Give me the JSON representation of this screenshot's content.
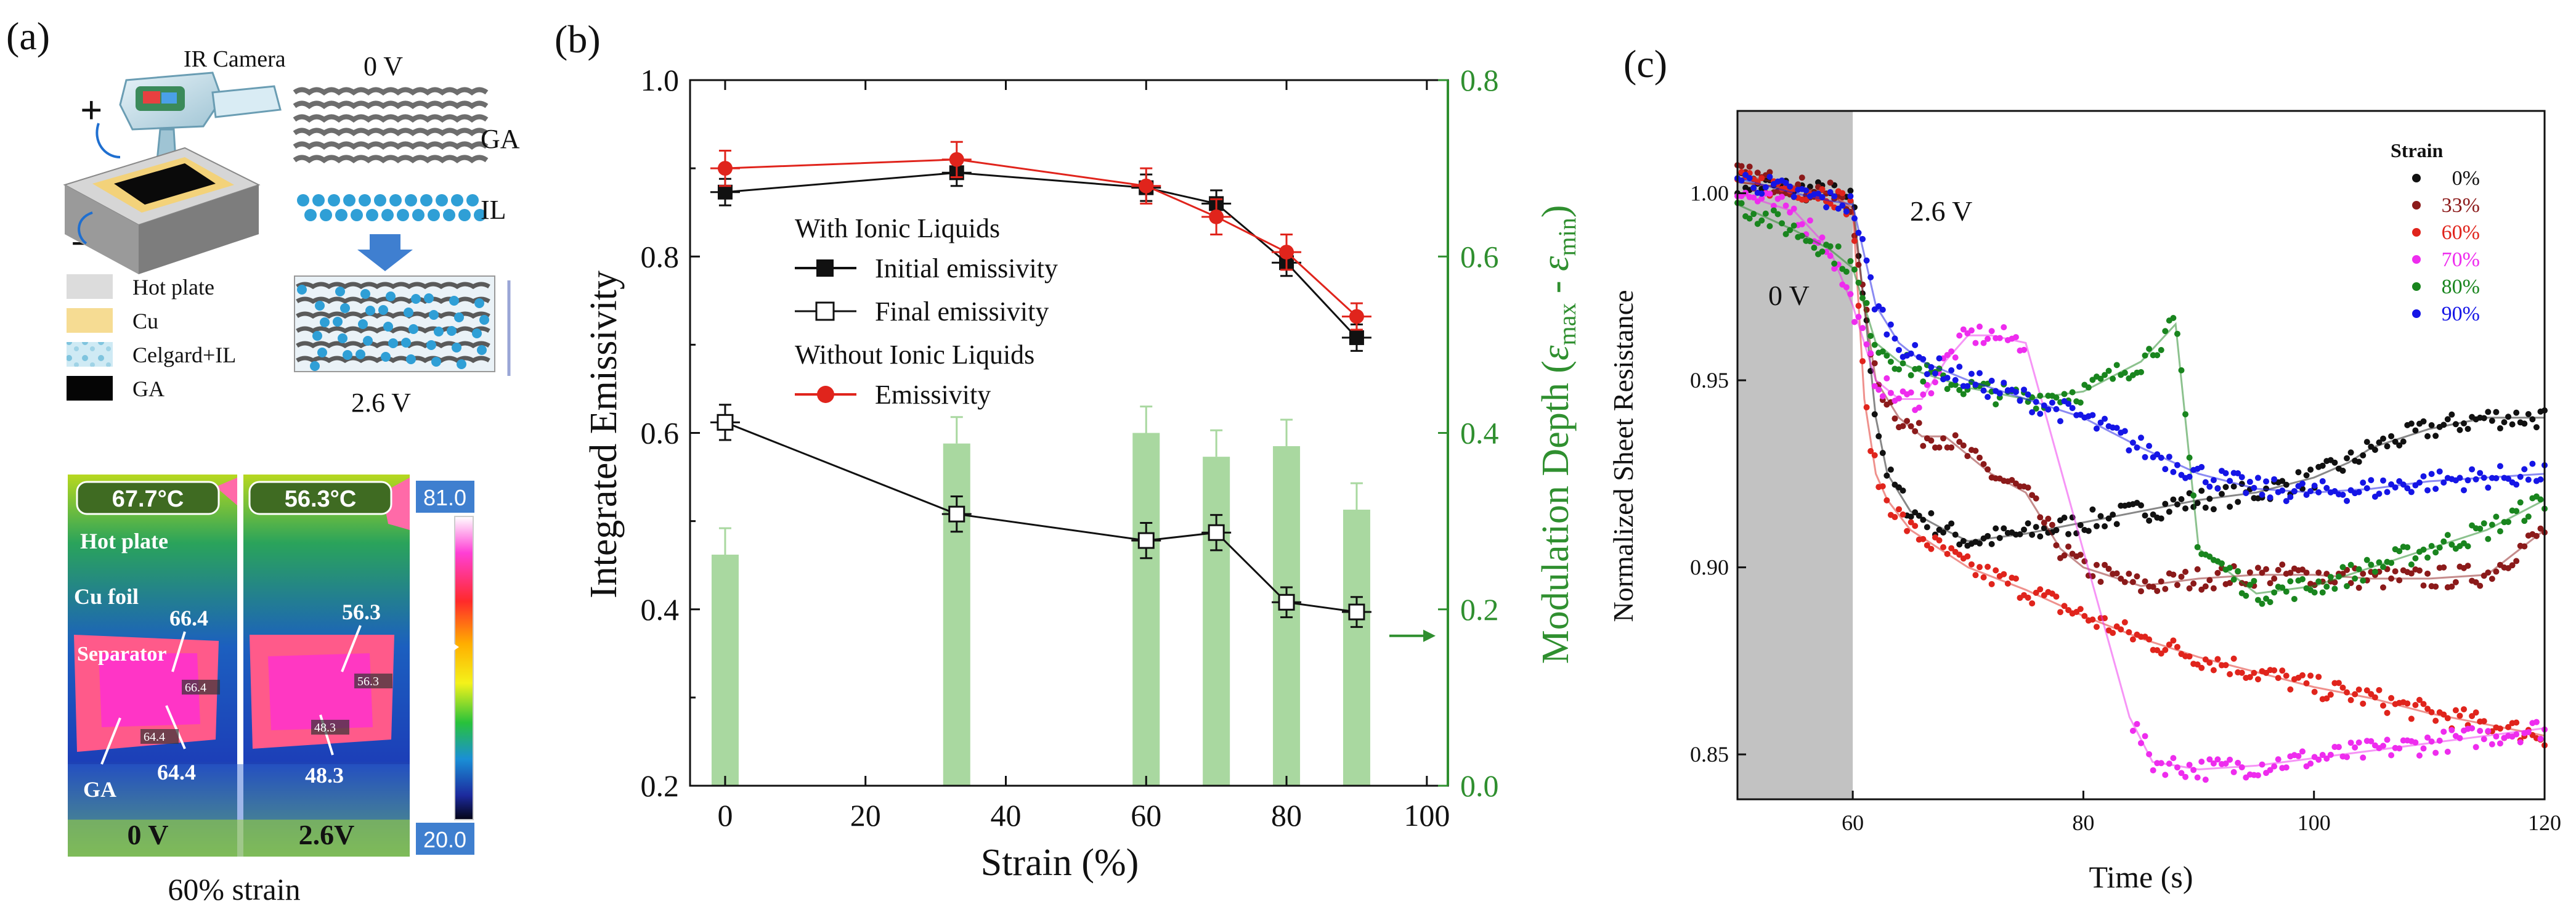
{
  "colors": {
    "black": "#111111",
    "red": "#e0241c",
    "green": "#2f8f2f",
    "bar_fill": "#a9d8a0",
    "gray_region": "#c2c2c2",
    "blue": "#1515e6",
    "darkred": "#8b1a1a",
    "magenta": "#ee2cee",
    "green_c": "#19851e",
    "hot": "#f2f2f2"
  },
  "panel_a": {
    "label": "(a)",
    "ir_camera": "IR Camera",
    "plus": "+",
    "minus": "−",
    "zero_v": "0 V",
    "ga": "GA",
    "il": "IL",
    "two_six_v": "2.6 V",
    "legend": [
      "Hot plate",
      "Cu",
      "Celgard+IL",
      "GA"
    ],
    "thermal": {
      "temp_left": "67.7°C",
      "temp_right": "56.3°C",
      "hot_plate": "Hot plate",
      "cu_foil": "Cu foil",
      "separator": "Separator",
      "ga": "GA",
      "left_values": [
        "66.4",
        "64.4"
      ],
      "right_values": [
        "56.3",
        "48.3"
      ],
      "small_tags_left": [
        "66.4",
        "64.4"
      ],
      "small_tags_right": [
        "56.3",
        "48.3"
      ],
      "colorbar_max": "81.0",
      "colorbar_min": "20.0",
      "voltage_left": "0 V",
      "voltage_right": "2.6V",
      "caption": "60% strain"
    }
  },
  "chart_data": [
    {
      "panel": "(b)",
      "type": "line",
      "xlabel": "Strain (%)",
      "ylabel": "Integrated Emissivity",
      "y2label": "Modulation Depth (εmax - εmin)",
      "y2label_parts": [
        "Modulation Depth (",
        "ε",
        "max",
        " - ",
        "ε",
        "min",
        ")"
      ],
      "xlim": [
        -5,
        103
      ],
      "ylim": [
        0.2,
        1.0
      ],
      "y2lim": [
        0.0,
        0.8
      ],
      "x_ticks": [
        0,
        20,
        40,
        60,
        80,
        100
      ],
      "y_ticks": [
        0.2,
        0.4,
        0.6,
        0.8,
        1.0
      ],
      "y2_ticks": [
        0.0,
        0.2,
        0.4,
        0.6,
        0.8
      ],
      "x_tick_labels": [
        "0",
        "20",
        "40",
        "60",
        "80",
        "100"
      ],
      "y_tick_labels": [
        "0.2",
        "0.4",
        "0.6",
        "0.8",
        "1.0"
      ],
      "y2_tick_labels": [
        "0.0",
        "0.2",
        "0.4",
        "0.6",
        "0.8"
      ],
      "arrow_at": 0.17,
      "legend": {
        "heading1": "With Ionic Liquids",
        "item1": "Initial emissivity",
        "item2": "Final emissivity",
        "heading2": "Without Ionic Liquids",
        "item3": "Emissivity"
      },
      "series": [
        {
          "name": "Initial emissivity",
          "marker": "filled-square",
          "color": "#111111",
          "x": [
            0,
            33,
            60,
            70,
            80,
            90
          ],
          "y": [
            0.873,
            0.895,
            0.878,
            0.86,
            0.793,
            0.708
          ],
          "yerr": [
            0.015,
            0.015,
            0.015,
            0.015,
            0.015,
            0.015
          ]
        },
        {
          "name": "Final emissivity",
          "marker": "open-square",
          "color": "#111111",
          "x": [
            0,
            33,
            60,
            70,
            80,
            90
          ],
          "y": [
            0.612,
            0.508,
            0.478,
            0.487,
            0.408,
            0.397
          ],
          "yerr": [
            0.02,
            0.02,
            0.02,
            0.02,
            0.017,
            0.017
          ]
        },
        {
          "name": "Emissivity",
          "marker": "filled-circle",
          "color": "#e0241c",
          "x": [
            0,
            33,
            60,
            70,
            80,
            90
          ],
          "y": [
            0.9,
            0.91,
            0.88,
            0.845,
            0.805,
            0.732
          ],
          "yerr": [
            0.02,
            0.02,
            0.02,
            0.02,
            0.02,
            0.015
          ]
        },
        {
          "name": "Modulation Depth",
          "type": "bar",
          "color": "#a9d8a0",
          "axis": "y2",
          "x": [
            0,
            33,
            60,
            70,
            80,
            90
          ],
          "y": [
            0.262,
            0.388,
            0.4,
            0.373,
            0.385,
            0.313
          ],
          "yerr": [
            0.03,
            0.03,
            0.03,
            0.03,
            0.03,
            0.03
          ]
        }
      ]
    },
    {
      "panel": "(c)",
      "type": "scatter",
      "xlabel": "Time (s)",
      "ylabel": "Normalized Sheet Resistance",
      "xlim": [
        50,
        120
      ],
      "ylim": [
        0.838,
        1.022
      ],
      "x_ticks": [
        60,
        80,
        100,
        120
      ],
      "y_ticks": [
        0.85,
        0.9,
        0.95,
        1.0
      ],
      "x_tick_labels": [
        "60",
        "80",
        "100",
        "120"
      ],
      "y_tick_labels": [
        "0.85",
        "0.90",
        "0.95",
        "1.00"
      ],
      "shaded_region": [
        50,
        60
      ],
      "region_labels": [
        "0 V",
        "2.6 V"
      ],
      "legend_title": "Strain",
      "series": [
        {
          "name": "0%",
          "color": "#111111",
          "x": [
            50,
            58,
            60,
            61,
            62,
            63,
            65,
            68,
            70,
            75,
            80,
            85,
            90,
            95,
            100,
            103,
            105,
            110,
            115,
            120
          ],
          "y": [
            1.003,
            1.0,
            0.998,
            0.97,
            0.94,
            0.925,
            0.915,
            0.91,
            0.907,
            0.909,
            0.912,
            0.915,
            0.918,
            0.92,
            0.924,
            0.928,
            0.932,
            0.937,
            0.94,
            0.94
          ]
        },
        {
          "name": "33%",
          "color": "#8b1a1a",
          "x": [
            50,
            58,
            60,
            61,
            62,
            64,
            66,
            68,
            70,
            72,
            75,
            78,
            80,
            85,
            90,
            95,
            100,
            105,
            110,
            115,
            120
          ],
          "y": [
            1.005,
            1.0,
            0.995,
            0.97,
            0.95,
            0.94,
            0.935,
            0.935,
            0.93,
            0.925,
            0.92,
            0.905,
            0.9,
            0.895,
            0.897,
            0.898,
            0.898,
            0.897,
            0.897,
            0.898,
            0.91
          ]
        },
        {
          "name": "60%",
          "color": "#e0241c",
          "x": [
            50,
            58,
            60,
            61,
            62,
            63,
            65,
            70,
            75,
            80,
            85,
            90,
            95,
            100,
            105,
            110,
            115,
            120
          ],
          "y": [
            1.003,
            1.0,
            0.996,
            0.945,
            0.925,
            0.918,
            0.91,
            0.9,
            0.894,
            0.887,
            0.881,
            0.876,
            0.872,
            0.868,
            0.865,
            0.861,
            0.858,
            0.855
          ]
        },
        {
          "name": "70%",
          "color": "#ee2cee",
          "x": [
            50,
            55,
            58,
            60,
            61,
            62,
            64,
            66,
            68,
            70,
            72,
            75,
            84,
            86,
            90,
            95,
            100,
            105,
            110,
            115,
            120
          ],
          "y": [
            1.0,
            0.995,
            0.985,
            0.97,
            0.96,
            0.95,
            0.945,
            0.945,
            0.955,
            0.962,
            0.962,
            0.96,
            0.86,
            0.848,
            0.846,
            0.847,
            0.849,
            0.851,
            0.853,
            0.855,
            0.857
          ]
        },
        {
          "name": "80%",
          "color": "#19851e",
          "x": [
            50,
            55,
            58,
            60,
            61,
            62,
            64,
            66,
            70,
            75,
            80,
            85,
            88,
            90,
            95,
            100,
            105,
            110,
            115,
            120
          ],
          "y": [
            0.997,
            0.99,
            0.985,
            0.98,
            0.97,
            0.96,
            0.955,
            0.952,
            0.948,
            0.945,
            0.947,
            0.955,
            0.965,
            0.905,
            0.893,
            0.895,
            0.9,
            0.905,
            0.91,
            0.918
          ]
        },
        {
          "name": "90%",
          "color": "#1515e6",
          "x": [
            50,
            55,
            58,
            60,
            62,
            64,
            66,
            70,
            75,
            80,
            85,
            90,
            95,
            100,
            105,
            110,
            115,
            120
          ],
          "y": [
            1.004,
            1.0,
            0.998,
            0.997,
            0.97,
            0.96,
            0.955,
            0.95,
            0.945,
            0.94,
            0.932,
            0.925,
            0.921,
            0.92,
            0.921,
            0.923,
            0.924,
            0.925
          ]
        }
      ]
    }
  ]
}
